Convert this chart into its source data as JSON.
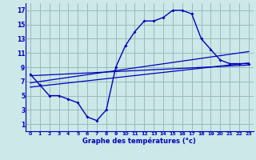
{
  "hours": [
    0,
    1,
    2,
    3,
    4,
    5,
    6,
    7,
    8,
    9,
    10,
    11,
    12,
    13,
    14,
    15,
    16,
    17,
    18,
    19,
    20,
    21,
    22,
    23
  ],
  "temp": [
    8,
    6.5,
    5,
    5,
    4.5,
    4,
    2,
    1.5,
    3,
    9,
    12,
    14,
    15.5,
    15.5,
    16,
    17,
    17,
    16.5,
    13,
    11.5,
    10,
    9.5,
    9.5,
    9.5
  ],
  "trend_lines": [
    {
      "x0": 0,
      "y0": 7.8,
      "x1": 23,
      "y1": 9.3
    },
    {
      "x0": 0,
      "y0": 6.8,
      "x1": 23,
      "y1": 11.2
    },
    {
      "x0": 0,
      "y0": 6.2,
      "x1": 23,
      "y1": 9.6
    }
  ],
  "bg_color": "#cce8e8",
  "line_color": "#0000bb",
  "grid_color": "#99bbbb",
  "xlabel": "Graphe des températures (°c)",
  "ylim": [
    0,
    18
  ],
  "xlim": [
    -0.5,
    23.5
  ],
  "yticks": [
    1,
    3,
    5,
    7,
    9,
    11,
    13,
    15,
    17
  ],
  "xticks": [
    0,
    1,
    2,
    3,
    4,
    5,
    6,
    7,
    8,
    9,
    10,
    11,
    12,
    13,
    14,
    15,
    16,
    17,
    18,
    19,
    20,
    21,
    22,
    23
  ]
}
